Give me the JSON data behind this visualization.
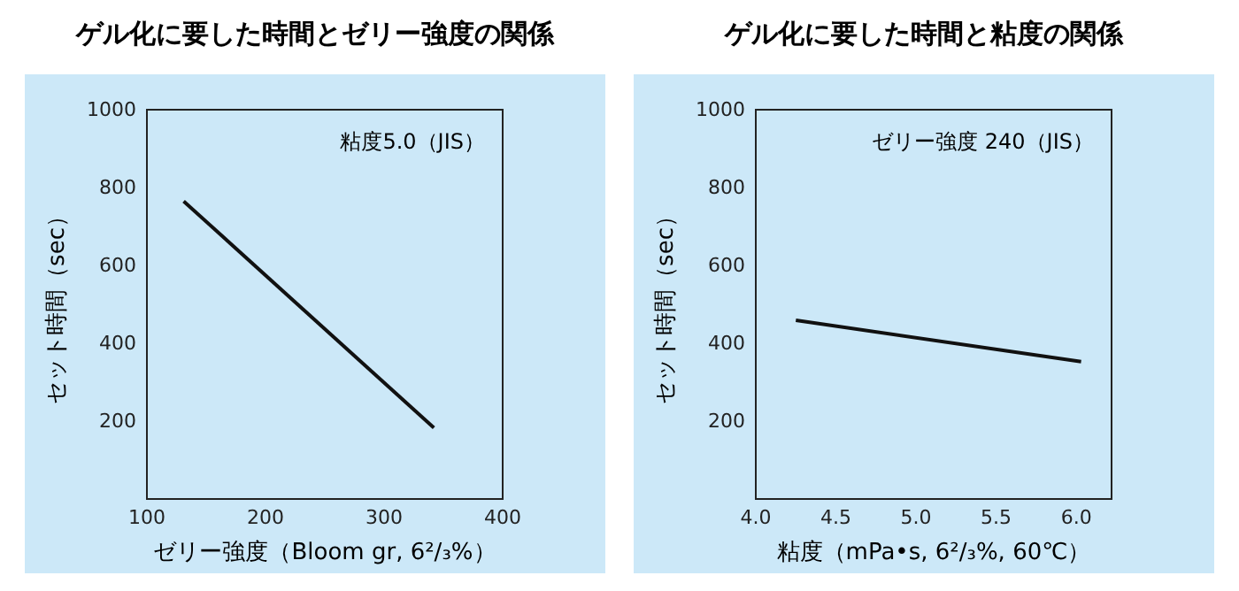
{
  "chart_data": [
    {
      "type": "line",
      "title": "ゲル化に要した時間とゼリー強度の関係",
      "xlabel": "ゼリー強度（Bloom gr, 6²/₃%）",
      "ylabel": "セット時間（sec）",
      "annotations": [
        "粘度5.0（JIS）"
      ],
      "xlim": [
        100,
        400
      ],
      "xticks": [
        100,
        200,
        300,
        400
      ],
      "ylim": [
        0,
        1000
      ],
      "yticks": [
        200,
        400,
        600,
        800,
        1000
      ],
      "grid": false,
      "marker": "none",
      "line_style": "solid",
      "series": [
        {
          "color": "#111111",
          "x": [
            131,
            342
          ],
          "values": [
            765,
            183
          ]
        }
      ]
    },
    {
      "type": "line",
      "title": "ゲル化に要した時間と粘度の関係",
      "xlabel": "粘度（mPa•s, 6²/₃%, 60℃）",
      "ylabel": "セット時間（sec）",
      "annotations": [
        "ゼリー強度 240（JIS）"
      ],
      "xlim": [
        4.0,
        6.22
      ],
      "xticks": [
        {
          "value": 4,
          "label": "4.0"
        },
        {
          "value": 4.5,
          "label": "4.5"
        },
        {
          "value": 5,
          "label": "5.0"
        },
        {
          "value": 5.5,
          "label": "5.5"
        },
        {
          "value": 6,
          "label": "6.0"
        }
      ],
      "ylim": [
        0,
        1000
      ],
      "yticks": [
        200,
        400,
        600,
        800,
        1000
      ],
      "grid": false,
      "marker": "none",
      "line_style": "solid",
      "series": [
        {
          "color": "#111111",
          "x": [
            4.25,
            6.03
          ],
          "values": [
            459,
            353
          ]
        }
      ]
    }
  ]
}
